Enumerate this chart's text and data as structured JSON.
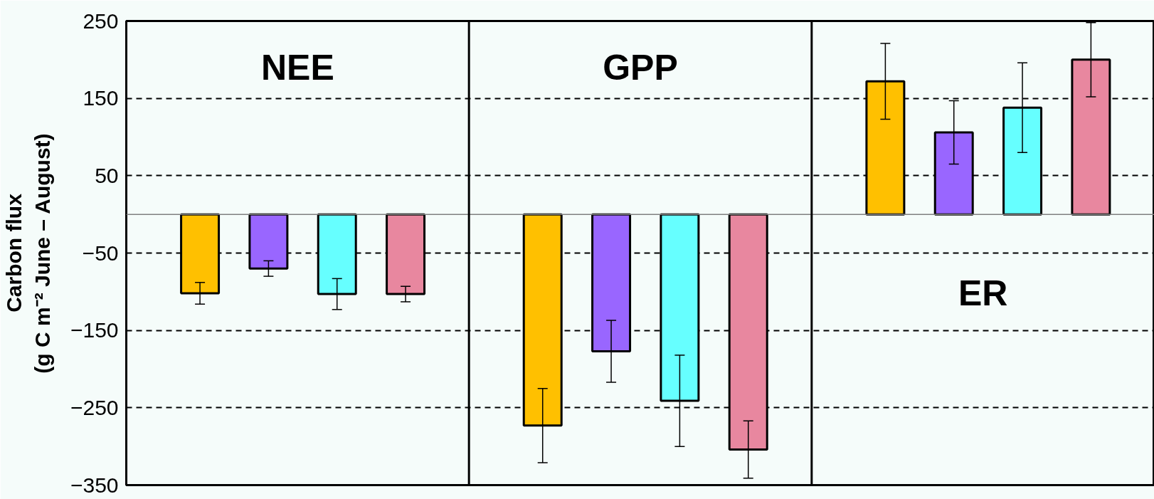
{
  "chart_data": {
    "type": "bar",
    "ylabel": "Carbon flux\n(g C m⁻² June – August)",
    "categories": [
      "NEE",
      "GPP",
      "ER"
    ],
    "series": [
      {
        "color": "#ffc000",
        "values": [
          -102,
          -273,
          172
        ],
        "errors": [
          14,
          48,
          49
        ]
      },
      {
        "color": "#9966ff",
        "values": [
          -70,
          -177,
          106
        ],
        "errors": [
          10,
          40,
          41
        ]
      },
      {
        "color": "#66ffff",
        "values": [
          -103,
          -241,
          138
        ],
        "errors": [
          20,
          59,
          58
        ]
      },
      {
        "color": "#e8879f",
        "values": [
          -103,
          -304,
          200
        ],
        "errors": [
          10,
          37,
          48
        ]
      }
    ],
    "ylim": [
      -350,
      250
    ],
    "yticks": [
      -350,
      -250,
      -150,
      -50,
      50,
      150,
      250
    ],
    "grid": "y",
    "ref_lines": [
      {
        "axis": "y",
        "value": 0,
        "color": "#808080"
      }
    ]
  }
}
